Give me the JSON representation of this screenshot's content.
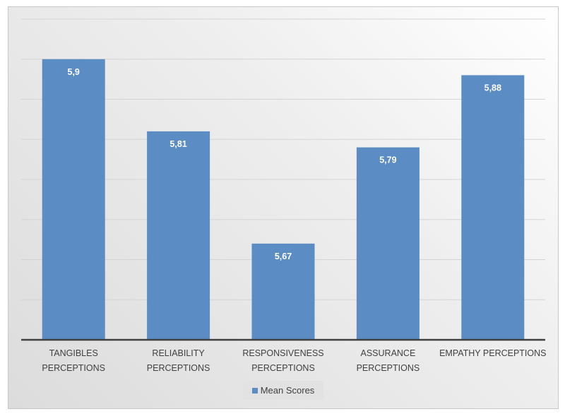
{
  "chart_data": {
    "type": "bar",
    "title": "",
    "xlabel": "",
    "ylabel": "",
    "categories": [
      [
        "TANGIBLES",
        "PERCEPTIONS"
      ],
      [
        "RELIABILITY",
        "PERCEPTIONS"
      ],
      [
        "RESPONSIVENESS",
        "PERCEPTIONS"
      ],
      [
        "ASSURANCE",
        "PERCEPTIONS"
      ],
      [
        "EMPATHY PERCEPTIONS"
      ]
    ],
    "series": [
      {
        "name": "Mean Scores",
        "values": [
          5.9,
          5.81,
          5.67,
          5.79,
          5.88
        ],
        "labels": [
          "5,9",
          "5,81",
          "5,67",
          "5,79",
          "5,88"
        ],
        "color": "#5b8cc4"
      }
    ],
    "ylim": [
      5.55,
      5.95
    ],
    "ytick_step": 0.05,
    "grid": true,
    "legend": "bottom"
  }
}
